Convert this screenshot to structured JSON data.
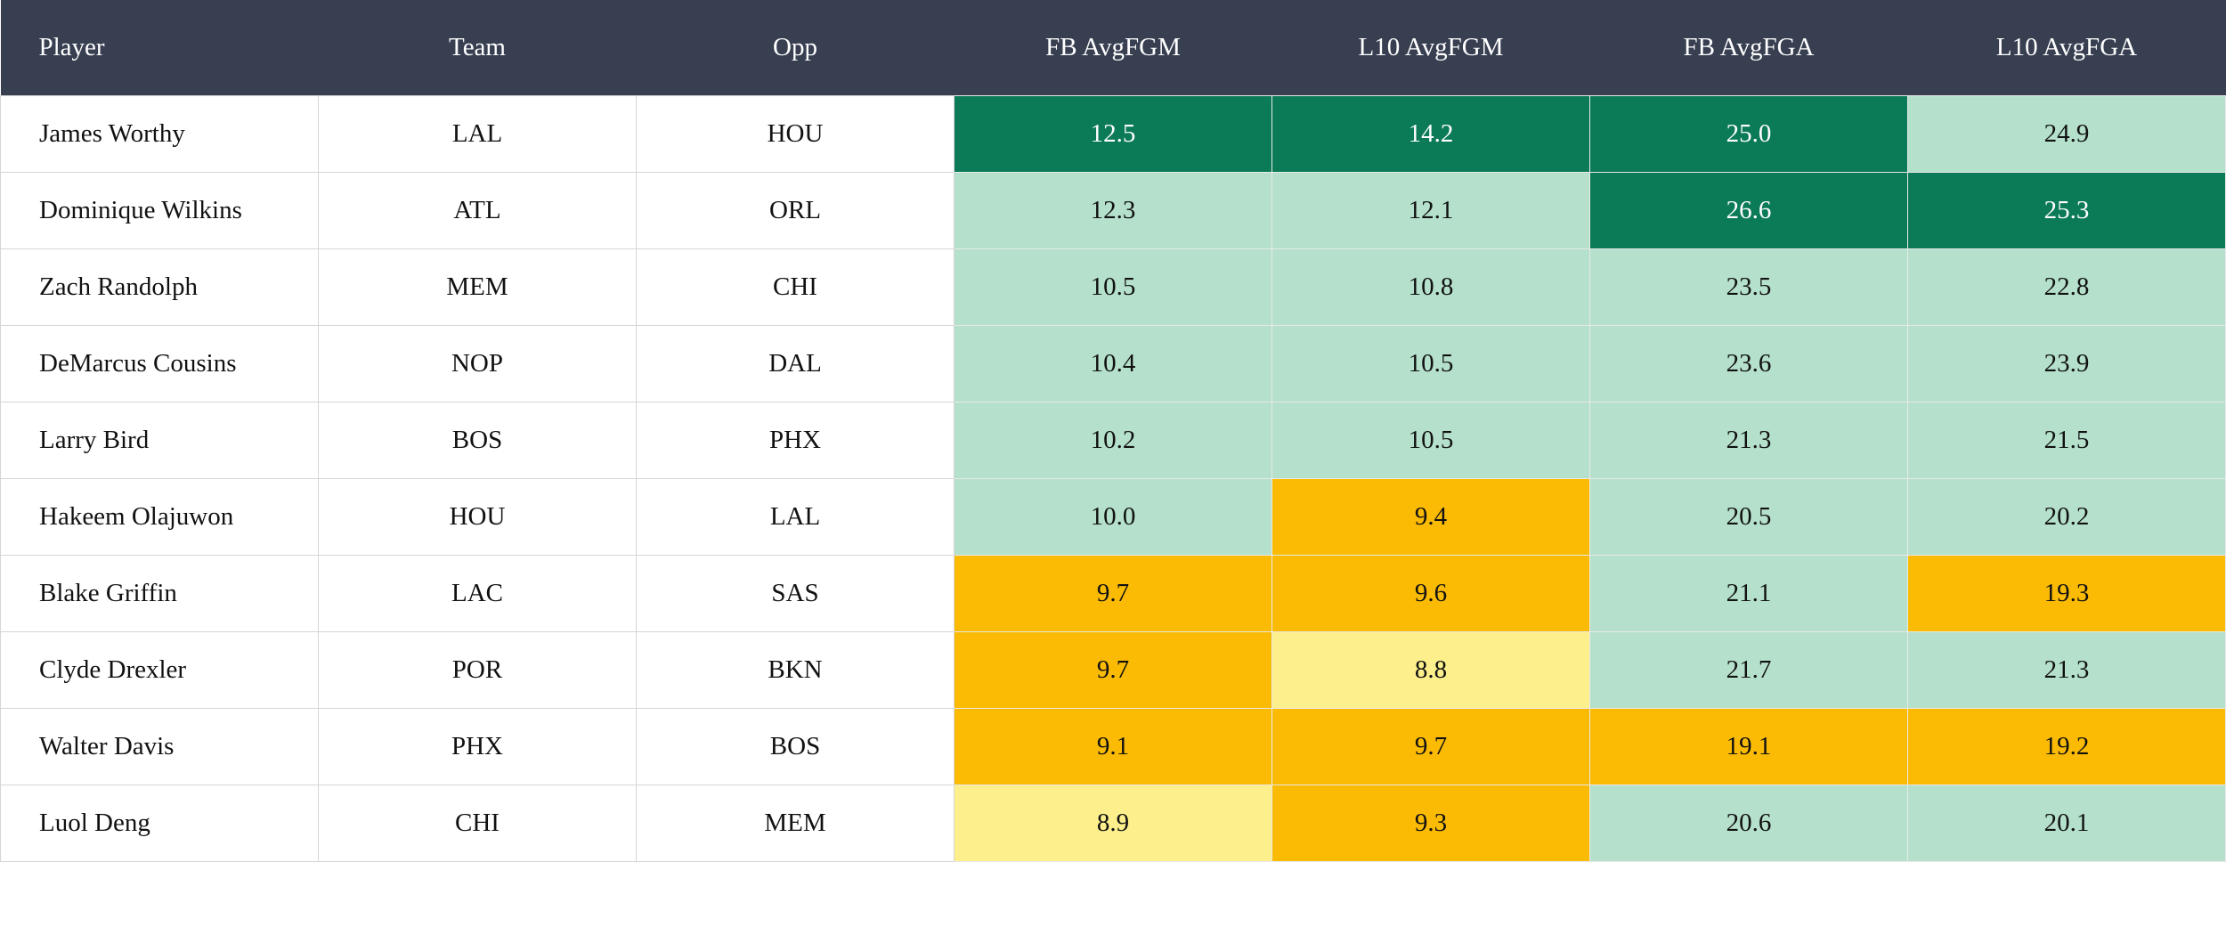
{
  "table": {
    "header": [
      "Player",
      "Team",
      "Opp",
      "FB AvgFGM",
      "L10 AvgFGM",
      "FB AvgFGA",
      "L10 AvgFGA"
    ],
    "rows": [
      [
        "James Worthy",
        "LAL",
        "HOU",
        "12.5",
        "14.2",
        "25.0",
        "24.9"
      ],
      [
        "Dominique Wilkins",
        "ATL",
        "ORL",
        "12.3",
        "12.1",
        "26.6",
        "25.3"
      ],
      [
        "Zach Randolph",
        "MEM",
        "CHI",
        "10.5",
        "10.8",
        "23.5",
        "22.8"
      ],
      [
        "DeMarcus Cousins",
        "NOP",
        "DAL",
        "10.4",
        "10.5",
        "23.6",
        "23.9"
      ],
      [
        "Larry Bird",
        "BOS",
        "PHX",
        "10.2",
        "10.5",
        "21.3",
        "21.5"
      ],
      [
        "Hakeem Olajuwon",
        "HOU",
        "LAL",
        "10.0",
        "9.4",
        "20.5",
        "20.2"
      ],
      [
        "Blake Griffin",
        "LAC",
        "SAS",
        "9.7",
        "9.6",
        "21.1",
        "19.3"
      ],
      [
        "Clyde Drexler",
        "POR",
        "BKN",
        "9.7",
        "8.8",
        "21.7",
        "21.3"
      ],
      [
        "Walter Davis",
        "PHX",
        "BOS",
        "9.1",
        "9.7",
        "19.1",
        "19.2"
      ],
      [
        "Luol Deng",
        "CHI",
        "MEM",
        "8.9",
        "9.3",
        "20.6",
        "20.1"
      ]
    ],
    "cell_colors": [
      [
        "#0b7a57",
        "#0b7a57",
        "#0b7a57",
        "#b5e1cc"
      ],
      [
        "#b5e1cc",
        "#b5e1cc",
        "#0b7a57",
        "#0b7a57"
      ],
      [
        "#b5e1cc",
        "#b5e1cc",
        "#b5e1cc",
        "#b5e1cc"
      ],
      [
        "#b5e1cc",
        "#b5e1cc",
        "#b5e1cc",
        "#b5e1cc"
      ],
      [
        "#b5e1cc",
        "#b5e1cc",
        "#b5e1cc",
        "#b5e1cc"
      ],
      [
        "#b5e1cc",
        "#fbbb05",
        "#b5e1cc",
        "#b5e1cc"
      ],
      [
        "#fbbb05",
        "#fbbb05",
        "#b5e1cc",
        "#fbbb05"
      ],
      [
        "#fbbb05",
        "#fdf08c",
        "#b5e1cc",
        "#b5e1cc"
      ],
      [
        "#fbbb05",
        "#fbbb05",
        "#fbbb05",
        "#fbbb05"
      ],
      [
        "#fdf08c",
        "#fbbb05",
        "#b5e1cc",
        "#b5e1cc"
      ]
    ]
  }
}
